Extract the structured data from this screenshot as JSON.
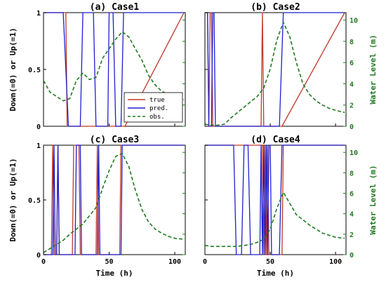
{
  "chart_data": [
    {
      "type": "line",
      "title": "(a) Case1",
      "xlabel": "",
      "ylabel": "Down(=0) or Up(=1)",
      "ylabel_right": "",
      "xlim": [
        0,
        108
      ],
      "ylim": [
        0,
        1
      ],
      "ylim_right": [
        0,
        10.7
      ],
      "xticks": [
        "",
        "",
        "",
        ""
      ],
      "yticks": [
        "0",
        "0.5",
        "1"
      ],
      "yticks_right": [
        "",
        "",
        "",
        "",
        "",
        ""
      ],
      "series": [
        {
          "name": "true",
          "color": "#c0392b",
          "axis": "left",
          "x": [
            0,
            17,
            18,
            62,
            107
          ],
          "y": [
            1,
            1,
            0,
            0,
            1
          ]
        },
        {
          "name": "pred.",
          "color": "#1f1fd0",
          "axis": "left",
          "x": [
            0,
            15,
            19,
            28,
            30,
            38,
            40,
            49,
            50,
            53,
            55,
            59,
            61,
            107
          ],
          "y": [
            1,
            1,
            0,
            0,
            1,
            1,
            0,
            0,
            1,
            1,
            0,
            0,
            1,
            1
          ]
        },
        {
          "name": "obs.",
          "color": "#1f7a1f",
          "axis": "right",
          "dashed": true,
          "x": [
            0,
            5,
            10,
            15,
            20,
            25,
            30,
            35,
            40,
            45,
            50,
            55,
            60,
            65,
            70,
            75,
            80,
            85,
            90,
            95,
            100,
            107
          ],
          "y": [
            4.3,
            3.2,
            2.8,
            2.4,
            2.6,
            4.3,
            5.0,
            4.4,
            4.6,
            6.4,
            7.3,
            8.2,
            8.9,
            8.4,
            7.3,
            6.2,
            4.8,
            3.9,
            3.3,
            3.0,
            2.7,
            2.5
          ]
        }
      ],
      "legend": "center-left"
    },
    {
      "type": "line",
      "title": "(b) Case2",
      "xlabel": "",
      "ylabel": "",
      "ylabel_right": "Water Level (m)",
      "xlim": [
        0,
        108
      ],
      "ylim": [
        0,
        1
      ],
      "ylim_right": [
        0,
        10.7
      ],
      "xticks": [
        "",
        "",
        "",
        ""
      ],
      "yticks": [
        "",
        "",
        ""
      ],
      "yticks_right": [
        "0",
        "2",
        "4",
        "6",
        "8",
        "10"
      ],
      "series": [
        {
          "name": "true",
          "color": "#c0392b",
          "axis": "left",
          "x": [
            0,
            2,
            3,
            4,
            5,
            6,
            8,
            9,
            43,
            44,
            45,
            59,
            107
          ],
          "y": [
            1,
            1,
            0,
            1,
            1,
            0,
            0,
            0,
            0,
            1,
            0,
            0,
            1
          ]
        },
        {
          "name": "pred.",
          "color": "#1f1fd0",
          "axis": "left",
          "x": [
            0,
            2,
            3,
            5,
            6,
            7,
            8,
            9,
            57,
            60,
            107
          ],
          "y": [
            1,
            1,
            0,
            0,
            1,
            1,
            0,
            0,
            0,
            1,
            1
          ]
        },
        {
          "name": "obs.",
          "color": "#1f7a1f",
          "axis": "right",
          "dashed": true,
          "x": [
            0,
            5,
            10,
            15,
            20,
            25,
            30,
            35,
            40,
            45,
            50,
            55,
            60,
            65,
            70,
            75,
            80,
            85,
            90,
            95,
            100,
            107
          ],
          "y": [
            0.2,
            0.1,
            0.1,
            0.2,
            0.8,
            1.3,
            1.8,
            2.3,
            2.8,
            3.6,
            5.4,
            8.1,
            9.8,
            8.4,
            6.0,
            4.0,
            3.0,
            2.4,
            2.0,
            1.7,
            1.5,
            1.3
          ]
        }
      ],
      "legend": ""
    },
    {
      "type": "line",
      "title": "(c) Case3",
      "xlabel": "Time (h)",
      "ylabel": "Down(=0) or Up(=1)",
      "ylabel_right": "",
      "xlim": [
        0,
        108
      ],
      "ylim": [
        0,
        1
      ],
      "ylim_right": [
        0,
        10.7
      ],
      "xticks": [
        "0",
        "50",
        "100"
      ],
      "yticks": [
        "0",
        "0.5",
        "1"
      ],
      "yticks_right": [
        "",
        "",
        "",
        "",
        "",
        ""
      ],
      "series": [
        {
          "name": "true",
          "color": "#c0392b",
          "axis": "left",
          "x": [
            0,
            6,
            7,
            8,
            10,
            11,
            12,
            22,
            23,
            27,
            28,
            40,
            41,
            42,
            58,
            59,
            107
          ],
          "y": [
            0,
            0,
            1,
            0,
            0,
            1,
            0,
            0,
            1,
            1,
            0,
            0,
            1,
            0,
            0,
            1,
            1
          ]
        },
        {
          "name": "pred.",
          "color": "#1f1fd0",
          "axis": "left",
          "x": [
            0,
            7,
            8,
            9,
            10,
            11,
            12,
            24,
            25,
            28,
            29,
            41,
            42,
            43,
            59,
            60,
            107
          ],
          "y": [
            0,
            0,
            1,
            0,
            0,
            1,
            0,
            0,
            1,
            1,
            0,
            0,
            1,
            0,
            0,
            1,
            1
          ]
        },
        {
          "name": "obs.",
          "color": "#1f7a1f",
          "axis": "right",
          "dashed": true,
          "x": [
            0,
            5,
            10,
            15,
            20,
            25,
            30,
            35,
            40,
            45,
            50,
            55,
            60,
            65,
            70,
            75,
            80,
            85,
            90,
            95,
            100,
            107
          ],
          "y": [
            0.2,
            0.6,
            1.0,
            1.4,
            2.0,
            2.5,
            3.0,
            3.8,
            4.6,
            6.5,
            8.2,
            9.6,
            9.9,
            8.6,
            6.3,
            4.4,
            3.2,
            2.5,
            2.1,
            1.8,
            1.6,
            1.5
          ]
        }
      ],
      "legend": ""
    },
    {
      "type": "line",
      "title": "(d) Case4",
      "xlabel": "Time (h)",
      "ylabel": "",
      "ylabel_right": "Water Level (m)",
      "xlim": [
        0,
        108
      ],
      "ylim": [
        0,
        1
      ],
      "ylim_right": [
        0,
        10.7
      ],
      "xticks": [
        "0",
        "50",
        "100"
      ],
      "yticks": [
        "",
        "",
        ""
      ],
      "yticks_right": [
        "0",
        "2",
        "4",
        "6",
        "8",
        "10"
      ],
      "series": [
        {
          "name": "true",
          "color": "#c0392b",
          "axis": "left",
          "x": [
            0,
            44,
            45,
            46,
            47,
            48,
            49,
            50,
            59,
            60,
            107
          ],
          "y": [
            1,
            1,
            0,
            1,
            0,
            1,
            0,
            0,
            0,
            1,
            1
          ]
        },
        {
          "name": "pred.",
          "color": "#1f1fd0",
          "axis": "left",
          "x": [
            0,
            22,
            24,
            28,
            30,
            33,
            35,
            42,
            43,
            44,
            45,
            46,
            47,
            48,
            49,
            50,
            51,
            57,
            59,
            107
          ],
          "y": [
            1,
            1,
            0,
            0,
            1,
            1,
            0,
            0,
            1,
            0,
            1,
            0,
            1,
            0,
            1,
            1,
            0,
            0,
            1,
            1
          ]
        },
        {
          "name": "obs.",
          "color": "#1f7a1f",
          "axis": "right",
          "dashed": true,
          "x": [
            0,
            5,
            10,
            15,
            20,
            25,
            30,
            35,
            40,
            45,
            50,
            55,
            60,
            65,
            70,
            75,
            80,
            85,
            90,
            95,
            100,
            107
          ],
          "y": [
            0.9,
            0.8,
            0.8,
            0.8,
            0.8,
            0.8,
            0.9,
            1.0,
            1.2,
            1.5,
            2.5,
            4.5,
            6.1,
            5.0,
            3.9,
            3.4,
            2.9,
            2.5,
            2.1,
            1.9,
            1.7,
            1.6
          ]
        }
      ],
      "legend": ""
    }
  ]
}
